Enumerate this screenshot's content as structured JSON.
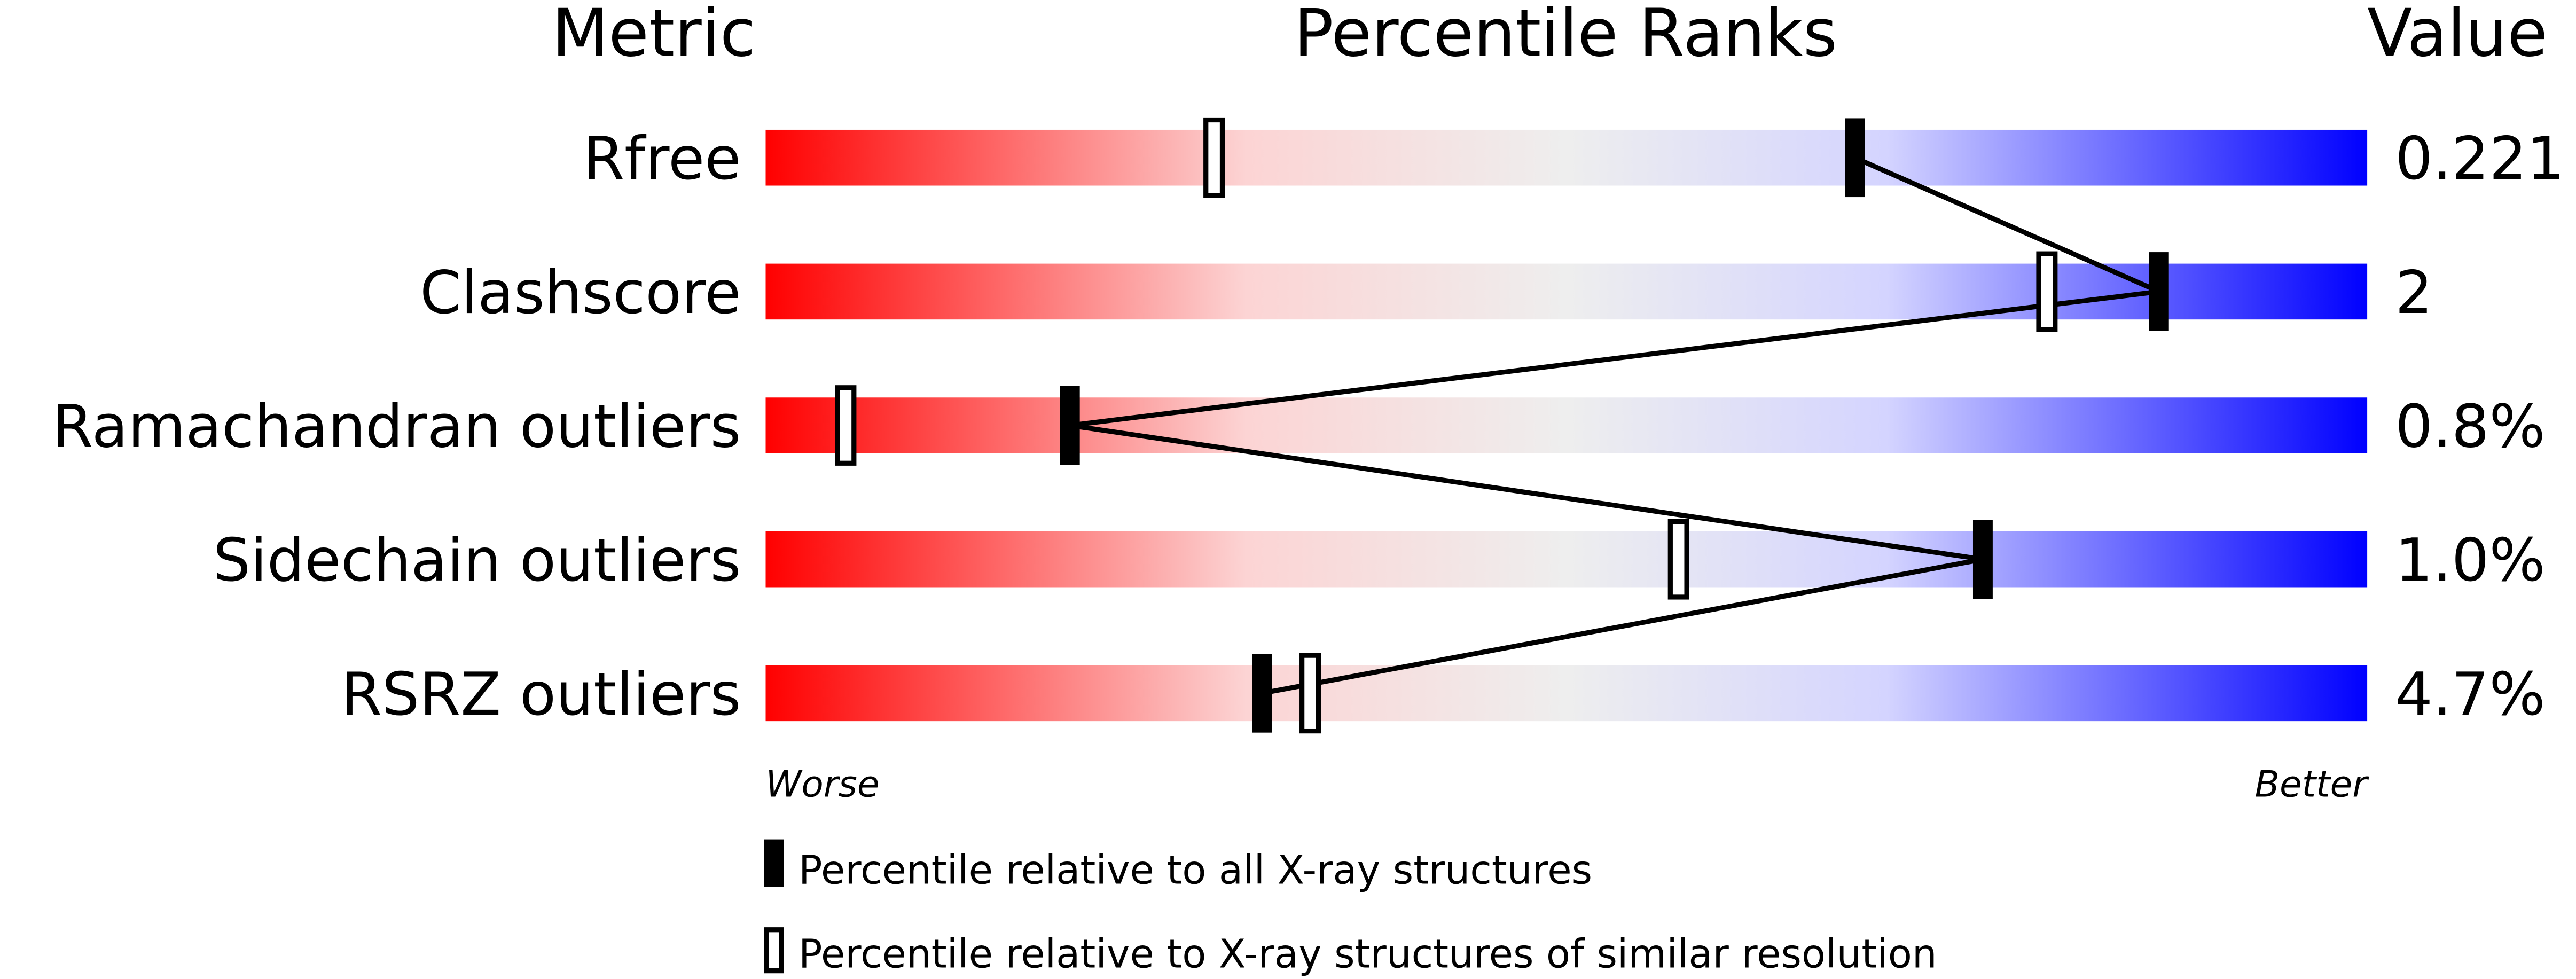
{
  "chart_data": {
    "type": "percentile-slider",
    "headers": {
      "metric": "Metric",
      "ranks": "Percentile Ranks",
      "value": "Value"
    },
    "xlim": [
      0,
      100
    ],
    "axis_labels": {
      "worse": "Worse",
      "better": "Better"
    },
    "colors": {
      "worse": "#ff0000",
      "middle": "#eeeeee",
      "better": "#0000ff",
      "marker": "#000000"
    },
    "metrics": [
      {
        "name": "Rfree",
        "value": "0.221",
        "percentile_all": 68,
        "percentile_similar": 28
      },
      {
        "name": "Clashscore",
        "value": "2",
        "percentile_all": 87,
        "percentile_similar": 80
      },
      {
        "name": "Ramachandran outliers",
        "value": "0.8%",
        "percentile_all": 19,
        "percentile_similar": 5
      },
      {
        "name": "Sidechain outliers",
        "value": "1.0%",
        "percentile_all": 76,
        "percentile_similar": 57
      },
      {
        "name": "RSRZ outliers",
        "value": "4.7%",
        "percentile_all": 31,
        "percentile_similar": 34
      }
    ],
    "legend": [
      {
        "marker": "filled",
        "label": "Percentile relative to all X-ray structures"
      },
      {
        "marker": "open",
        "label": "Percentile relative to X-ray structures of similar resolution"
      }
    ]
  }
}
